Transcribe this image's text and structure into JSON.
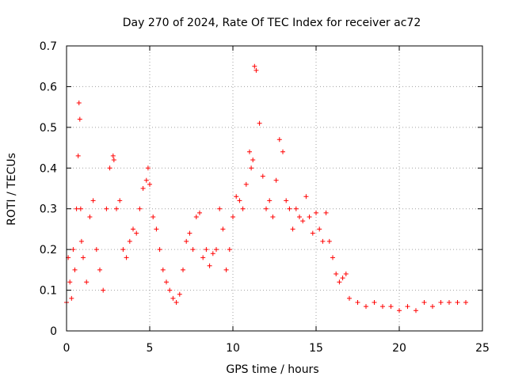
{
  "chart_data": {
    "type": "scatter",
    "title": "Day 270 of 2024, Rate Of TEC Index for receiver ac72",
    "xlabel": "GPS time / hours",
    "ylabel": "ROTI / TECUs",
    "xlim": [
      0,
      25
    ],
    "ylim": [
      0,
      0.7
    ],
    "x_ticks": [
      "0",
      "5",
      "10",
      "15",
      "20",
      "25"
    ],
    "y_ticks": [
      "0",
      "0.1",
      "0.2",
      "0.3",
      "0.4",
      "0.5",
      "0.6",
      "0.7"
    ],
    "grid": true,
    "marker": "+",
    "color": "#ff0000",
    "series": [
      {
        "x": [
          0.0,
          0.1,
          0.2,
          0.3,
          0.4,
          0.5,
          0.6,
          0.7,
          0.75,
          0.8,
          0.85,
          0.9,
          1.0,
          1.2,
          1.4,
          1.6,
          1.8,
          2.0,
          2.2,
          2.4,
          2.6,
          2.8,
          2.85,
          3.0,
          3.2,
          3.4,
          3.6,
          3.8,
          4.0,
          4.2,
          4.4,
          4.6,
          4.8,
          4.9,
          5.0,
          5.2,
          5.4,
          5.6,
          5.8,
          6.0,
          6.2,
          6.4,
          6.6,
          6.8,
          7.0,
          7.2,
          7.4,
          7.6,
          7.8,
          8.0,
          8.2,
          8.4,
          8.6,
          8.8,
          9.0,
          9.2,
          9.4,
          9.6,
          9.8,
          10.0,
          10.2,
          10.4,
          10.6,
          10.8,
          11.0,
          11.1,
          11.2,
          11.3,
          11.4,
          11.6,
          11.8,
          12.0,
          12.2,
          12.4,
          12.6,
          12.8,
          13.0,
          13.2,
          13.4,
          13.6,
          13.8,
          14.0,
          14.2,
          14.4,
          14.6,
          14.8,
          15.0,
          15.2,
          15.4,
          15.6,
          15.8,
          16.0,
          16.2,
          16.4,
          16.6,
          16.8,
          17.0,
          17.5,
          18.0,
          18.5,
          19.0,
          19.5,
          20.0,
          20.5,
          21.0,
          21.5,
          22.0,
          22.5,
          23.0,
          23.5,
          24.0
        ],
        "y": [
          0.07,
          0.18,
          0.12,
          0.08,
          0.2,
          0.15,
          0.3,
          0.43,
          0.56,
          0.52,
          0.3,
          0.22,
          0.18,
          0.12,
          0.28,
          0.32,
          0.2,
          0.15,
          0.1,
          0.3,
          0.4,
          0.43,
          0.42,
          0.3,
          0.32,
          0.2,
          0.18,
          0.22,
          0.25,
          0.24,
          0.3,
          0.35,
          0.37,
          0.4,
          0.36,
          0.28,
          0.25,
          0.2,
          0.15,
          0.12,
          0.1,
          0.08,
          0.07,
          0.09,
          0.15,
          0.22,
          0.24,
          0.2,
          0.28,
          0.29,
          0.18,
          0.2,
          0.16,
          0.19,
          0.2,
          0.3,
          0.25,
          0.15,
          0.2,
          0.28,
          0.33,
          0.32,
          0.3,
          0.36,
          0.44,
          0.4,
          0.42,
          0.65,
          0.64,
          0.51,
          0.38,
          0.3,
          0.32,
          0.28,
          0.37,
          0.47,
          0.44,
          0.32,
          0.3,
          0.25,
          0.3,
          0.28,
          0.27,
          0.33,
          0.28,
          0.24,
          0.29,
          0.25,
          0.22,
          0.29,
          0.22,
          0.18,
          0.14,
          0.12,
          0.13,
          0.14,
          0.08,
          0.07,
          0.06,
          0.07,
          0.06,
          0.06,
          0.05,
          0.06,
          0.05,
          0.07,
          0.06,
          0.07,
          0.07,
          0.07,
          0.07
        ]
      }
    ]
  }
}
